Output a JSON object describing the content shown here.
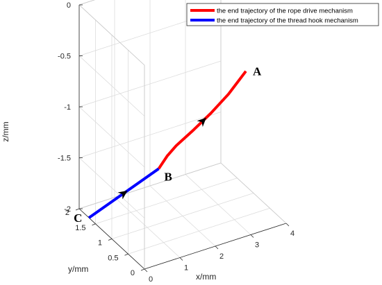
{
  "chart_data": {
    "type": "line",
    "view": "3d",
    "xlabel": "x/mm",
    "ylabel": "y/mm",
    "zlabel": "z/mm",
    "xlim": [
      0,
      4
    ],
    "ylim": [
      0,
      2
    ],
    "zlim": [
      -2,
      0
    ],
    "xticks": [
      "0",
      "1",
      "2",
      "3",
      "4"
    ],
    "yticks": [
      "0",
      "0.5",
      "1",
      "1.5",
      "2"
    ],
    "zticks": [
      "-2",
      "-1.5",
      "-1",
      "-0.5",
      "0"
    ],
    "grid": true,
    "box": true,
    "legend_position": "top-right",
    "series": [
      {
        "name": "the end trajectory of the rope drive mechanism",
        "color": "#ff0000",
        "arrow": "toward B",
        "points": [
          {
            "x": 3.6,
            "y": 0.8,
            "z": -0.7
          },
          {
            "x": 3.2,
            "y": 0.9,
            "z": -0.91
          },
          {
            "x": 2.8,
            "y": 1.0,
            "z": -1.08
          },
          {
            "x": 2.4,
            "y": 1.1,
            "z": -1.23
          },
          {
            "x": 2.0,
            "y": 1.2,
            "z": -1.37
          },
          {
            "x": 1.8,
            "y": 1.25,
            "z": -1.46
          },
          {
            "x": 1.6,
            "y": 1.3,
            "z": -1.58
          }
        ]
      },
      {
        "name": "the end trajectory of the thread hook mechanism",
        "color": "#0000ff",
        "arrow": "toward B",
        "points": [
          {
            "x": 0.0,
            "y": 1.7,
            "z": -2.0
          },
          {
            "x": 1.6,
            "y": 1.3,
            "z": -1.58
          }
        ]
      }
    ],
    "annotations": [
      {
        "text": "A",
        "x": 3.6,
        "y": 0.8,
        "z": -0.7
      },
      {
        "text": "B",
        "x": 1.6,
        "y": 1.3,
        "z": -1.58
      },
      {
        "text": "C",
        "x": 0.0,
        "y": 1.7,
        "z": -2.0
      }
    ]
  }
}
